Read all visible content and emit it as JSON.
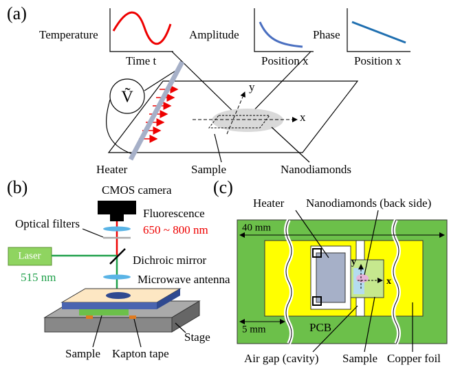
{
  "panel_a": {
    "label": "(a)",
    "plots": [
      {
        "ylabel": "Temperature",
        "xlabel": "Time t"
      },
      {
        "ylabel": "Amplitude",
        "xlabel": "Position x"
      },
      {
        "ylabel": "Phase",
        "xlabel": "Position x"
      }
    ],
    "voltage": "Ṽ",
    "axis_y": "y",
    "axis_x": "x",
    "heater": "Heater",
    "sample": "Sample",
    "nanodiamonds": "Nanodiamonds"
  },
  "panel_b": {
    "label": "(b)",
    "camera": "CMOS camera",
    "fluorescence": "Fluorescence",
    "fluorescence_range": "650 ~ 800 nm",
    "optical_filters": "Optical filters",
    "laser": "Laser",
    "dichroic_mirror": "Dichroic mirror",
    "laser_wavelength": "515 nm",
    "microwave_antenna": "Microwave antenna",
    "stage": "Stage",
    "sample": "Sample",
    "kapton_tape": "Kapton tape"
  },
  "panel_c": {
    "label": "(c)",
    "heater": "Heater",
    "nanodiamonds": "Nanodiamonds (back side)",
    "width_40": "40 mm",
    "axis_y": "y",
    "axis_x": "x",
    "width_5": "5 mm",
    "pcb": "PCB",
    "air_gap": "Air gap (cavity)",
    "sample": "Sample",
    "copper_foil": "Copper foil"
  }
}
